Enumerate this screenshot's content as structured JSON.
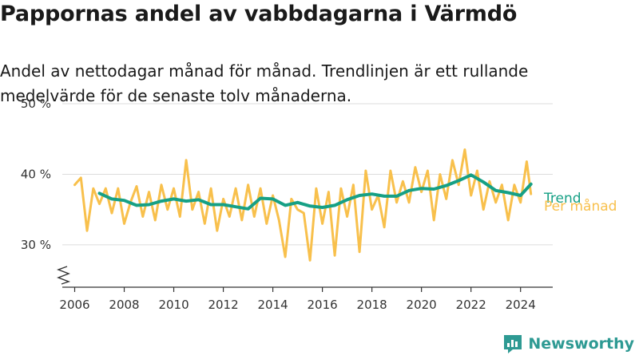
{
  "title": "Pappornas andel av vabbdagarna i Värmdö",
  "subtitle": "Andel av nettodagar månad för månad. Trendlinjen är ett rullande medelvärde för de senaste tolv månaderna.",
  "brand": "Newsworthy",
  "colors": {
    "monthly": "#f8c04c",
    "trend": "#16a085",
    "grid": "#dddddd",
    "brand": "#2e9a93"
  },
  "chart_data": {
    "type": "line",
    "ylim": [
      24,
      50
    ],
    "ylim_note": "axis is broken below 30 %",
    "xlim": [
      2005.5,
      2025.3
    ],
    "y_ticks": [
      {
        "value": 30,
        "label": "30 %"
      },
      {
        "value": 40,
        "label": "40 %"
      },
      {
        "value": 50,
        "label": "50 %"
      }
    ],
    "x_ticks": [
      {
        "value": 2006,
        "label": "2006"
      },
      {
        "value": 2008,
        "label": "2008"
      },
      {
        "value": 2010,
        "label": "2010"
      },
      {
        "value": 2012,
        "label": "2012"
      },
      {
        "value": 2014,
        "label": "2014"
      },
      {
        "value": 2016,
        "label": "2016"
      },
      {
        "value": 2018,
        "label": "2018"
      },
      {
        "value": 2020,
        "label": "2020"
      },
      {
        "value": 2022,
        "label": "2022"
      },
      {
        "value": 2024,
        "label": "2024"
      }
    ],
    "grid": true,
    "legend": "inline-right",
    "series": [
      {
        "name": "Per månad",
        "x": [
          2006.0,
          2006.25,
          2006.5,
          2006.75,
          2007.0,
          2007.25,
          2007.5,
          2007.75,
          2008.0,
          2008.25,
          2008.5,
          2008.75,
          2009.0,
          2009.25,
          2009.5,
          2009.75,
          2010.0,
          2010.25,
          2010.5,
          2010.75,
          2011.0,
          2011.25,
          2011.5,
          2011.75,
          2012.0,
          2012.25,
          2012.5,
          2012.75,
          2013.0,
          2013.25,
          2013.5,
          2013.75,
          2014.0,
          2014.25,
          2014.5,
          2014.75,
          2015.0,
          2015.25,
          2015.5,
          2015.75,
          2016.0,
          2016.25,
          2016.5,
          2016.75,
          2017.0,
          2017.25,
          2017.5,
          2017.75,
          2018.0,
          2018.25,
          2018.5,
          2018.75,
          2019.0,
          2019.25,
          2019.5,
          2019.75,
          2020.0,
          2020.25,
          2020.5,
          2020.75,
          2021.0,
          2021.25,
          2021.5,
          2021.75,
          2022.0,
          2022.25,
          2022.5,
          2022.75,
          2023.0,
          2023.25,
          2023.5,
          2023.75,
          2024.0,
          2024.25,
          2024.42
        ],
        "values": [
          38.5,
          39.5,
          32.0,
          38.0,
          35.8,
          38.0,
          34.5,
          38.0,
          33.0,
          36.0,
          38.3,
          34.0,
          37.5,
          33.5,
          38.5,
          35.0,
          38.0,
          34.0,
          42.0,
          35.0,
          37.5,
          33.0,
          38.0,
          32.0,
          36.5,
          34.0,
          38.0,
          33.5,
          38.5,
          34.0,
          38.0,
          33.0,
          37.0,
          33.5,
          28.3,
          36.5,
          35.0,
          34.5,
          27.8,
          38.0,
          33.0,
          37.5,
          28.5,
          38.0,
          34.0,
          38.5,
          29.0,
          40.5,
          35.0,
          37.0,
          32.5,
          40.5,
          36.0,
          39.0,
          36.0,
          41.0,
          37.5,
          40.5,
          33.5,
          40.0,
          36.5,
          42.0,
          38.5,
          43.5,
          37.0,
          40.5,
          35.0,
          39.0,
          36.0,
          38.5,
          33.5,
          38.5,
          36.0,
          41.8,
          37.2
        ]
      },
      {
        "name": "Trend",
        "x": [
          2007.0,
          2007.5,
          2008.0,
          2008.5,
          2009.0,
          2009.5,
          2010.0,
          2010.5,
          2011.0,
          2011.5,
          2012.0,
          2012.5,
          2013.0,
          2013.5,
          2014.0,
          2014.5,
          2015.0,
          2015.5,
          2016.0,
          2016.5,
          2017.0,
          2017.5,
          2018.0,
          2018.5,
          2019.0,
          2019.5,
          2020.0,
          2020.5,
          2021.0,
          2021.5,
          2022.0,
          2022.5,
          2023.0,
          2023.5,
          2024.0,
          2024.42
        ],
        "values": [
          37.3,
          36.5,
          36.3,
          35.6,
          35.7,
          36.2,
          36.5,
          36.2,
          36.4,
          35.7,
          35.7,
          35.4,
          35.1,
          36.6,
          36.5,
          35.6,
          36.0,
          35.5,
          35.3,
          35.6,
          36.4,
          37.0,
          37.2,
          36.9,
          36.9,
          37.7,
          38.0,
          37.9,
          38.4,
          39.1,
          39.9,
          38.9,
          37.7,
          37.4,
          37.0,
          38.6
        ]
      }
    ]
  }
}
